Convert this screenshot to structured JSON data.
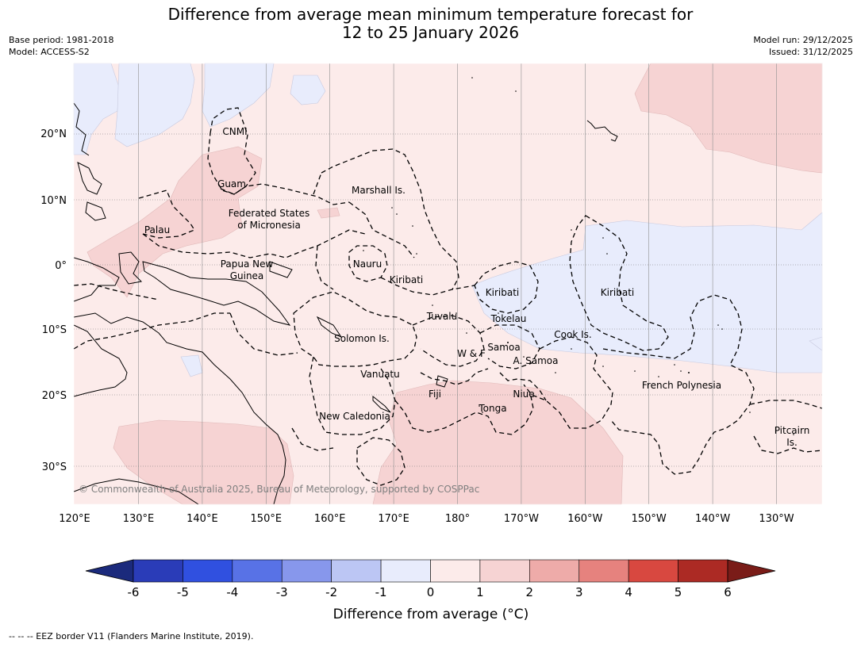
{
  "title_line1": "Difference from average mean minimum temperature forecast for",
  "title_line2": "12 to 25 January 2026",
  "base_period": "Base period: 1981-2018",
  "model": "Model: ACCESS-S2",
  "model_run": "Model run: 29/12/2025",
  "issued": "Issued: 31/12/2025",
  "lon_labels": [
    "120°E",
    "130°E",
    "140°E",
    "150°E",
    "160°E",
    "170°E",
    "180°",
    "170°W",
    "160°W",
    "150°W",
    "140°W",
    "130°W"
  ],
  "lat_labels": [
    "20°N",
    "10°N",
    "0°",
    "10°S",
    "20°S",
    "30°S"
  ],
  "regions": {
    "cnmi": "CNMI",
    "guam": "Guam",
    "marshall": "Marshall Is.",
    "fsm1": "Federated States",
    "fsm2": "of Micronesia",
    "palau": "Palau",
    "png1": "Papua New",
    "png2": "Guinea",
    "nauru": "Nauru",
    "kiribati_w": "Kiribati",
    "kiribati_c": "Kiribati",
    "kiribati_e": "Kiribati",
    "tuvalu": "Tuvalu",
    "tokelau": "Tokelau",
    "cook": "Cook Is.",
    "solomon": "Solomon Is.",
    "samoa": "Samoa",
    "wf": "W & F",
    "asamoa": "A. Samoa",
    "vanuatu": "Vanuatu",
    "fiji": "Fiji",
    "niue": "Niue",
    "tonga": "Tonga",
    "frenchpoly": "French Polynesia",
    "newcal": "New Caledonia",
    "pitcairn1": "Pitcairn",
    "pitcairn2": "Is."
  },
  "copyright": "© Commonwealth of Australia 2025, Bureau of Meteorology, supported by COSPPac",
  "colorbar": {
    "ticks": [
      "-6",
      "-5",
      "-4",
      "-3",
      "-2",
      "-1",
      "0",
      "1",
      "2",
      "3",
      "4",
      "5",
      "6"
    ],
    "colors": [
      "#1b2a7c",
      "#2a3cb8",
      "#3050e0",
      "#5872e6",
      "#8797ec",
      "#bcc6f4",
      "#e8ecfc",
      "#fcebea",
      "#f6d3d3",
      "#eeaba9",
      "#e6827e",
      "#d84840",
      "#ac2a24",
      "#7a1c18"
    ],
    "title": "Difference from average (°C)"
  },
  "footer": "-- -- -- EEZ border V11 (Flanders Marine Institute, 2019)."
}
